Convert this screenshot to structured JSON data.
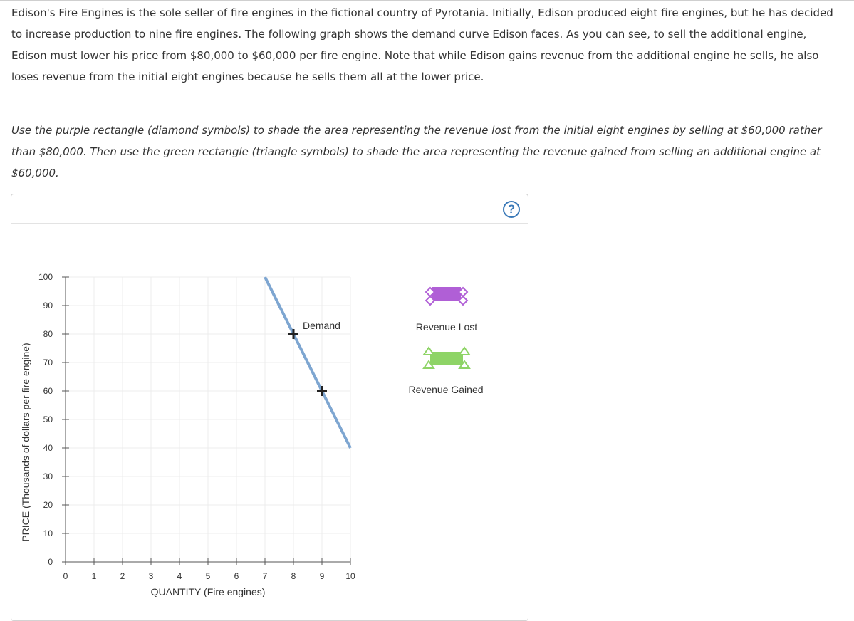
{
  "intro_text": "Edison's Fire Engines is the sole seller of fire engines in the fictional country of Pyrotania. Initially, Edison produced eight fire engines, but he has decided to increase production to nine fire engines. The following graph shows the demand curve Edison faces. As you can see, to sell the additional engine, Edison must lower his price from $80,000 to $60,000 per fire engine. Note that while Edison gains revenue from the additional engine he sells, he also loses revenue from the initial eight engines because he sells them all at the lower price.",
  "instruction_text": "Use the purple rectangle (diamond symbols) to shade the area representing the revenue lost from the initial eight engines by selling at $60,000 rather than $80,000. Then use the green rectangle (triangle symbols) to shade the area representing the revenue gained from selling an additional engine at $60,000.",
  "help": {
    "symbol": "?",
    "icon": "question-circle-icon"
  },
  "legend": {
    "revenue_lost": {
      "label": "Revenue Lost",
      "color": "#b05fd6",
      "symbol": "diamond"
    },
    "revenue_gained": {
      "label": "Revenue Gained",
      "color": "#8ed466",
      "symbol": "triangle"
    }
  },
  "chart_data": {
    "type": "line",
    "xlabel": "QUANTITY (Fire engines)",
    "ylabel": "PRICE (Thousands of dollars per fire engine)",
    "xlim": [
      0,
      10
    ],
    "ylim": [
      0,
      100
    ],
    "x_ticks": [
      0,
      1,
      2,
      3,
      4,
      5,
      6,
      7,
      8,
      9,
      10
    ],
    "y_ticks": [
      0,
      10,
      20,
      30,
      40,
      50,
      60,
      70,
      80,
      90,
      100
    ],
    "grid": true,
    "series": [
      {
        "name": "Demand",
        "color": "#7ea6d1",
        "x": [
          7,
          10
        ],
        "y": [
          100,
          40
        ]
      }
    ],
    "markers": [
      {
        "x": 8,
        "y": 80,
        "shape": "plus"
      },
      {
        "x": 9,
        "y": 60,
        "shape": "plus"
      }
    ]
  }
}
